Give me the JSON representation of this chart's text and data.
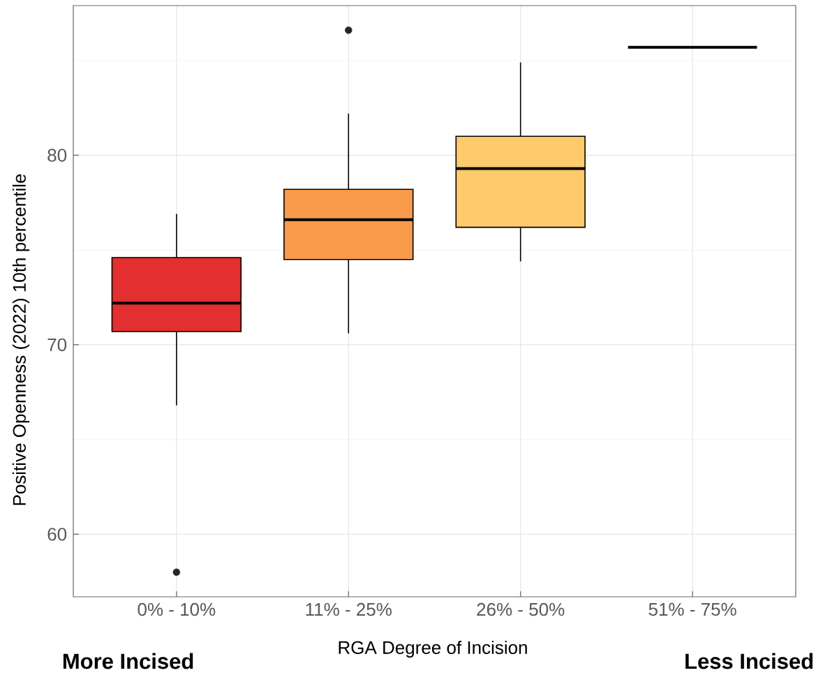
{
  "chart_data": {
    "type": "box",
    "categories": [
      "0% - 10%",
      "11% - 25%",
      "26% - 50%",
      "51% - 75%"
    ],
    "boxes": [
      {
        "low": 66.8,
        "q1": 70.7,
        "median": 72.2,
        "q3": 74.6,
        "high": 76.9,
        "outliers": [
          58.0
        ]
      },
      {
        "low": 70.6,
        "q1": 74.5,
        "median": 76.6,
        "q3": 78.2,
        "high": 82.2,
        "outliers": [
          86.6
        ]
      },
      {
        "low": 74.4,
        "q1": 76.2,
        "median": 79.3,
        "q3": 81.0,
        "high": 84.9
      },
      {
        "low": 85.7,
        "q1": 85.7,
        "median": 85.7,
        "q3": 85.7,
        "high": 85.7
      }
    ],
    "colors": [
      "#e32f2f",
      "#f99a4b",
      "#fdcb6b",
      null
    ],
    "xlabel": "RGA Degree of Incision",
    "ylabel": "Positive Openness (2022)  10th percentile",
    "ylim": [
      56.7,
      87.9
    ],
    "yticks": [
      60,
      70,
      80
    ],
    "grid": true,
    "annotations": [
      "More Incised",
      "Less Incised"
    ]
  }
}
